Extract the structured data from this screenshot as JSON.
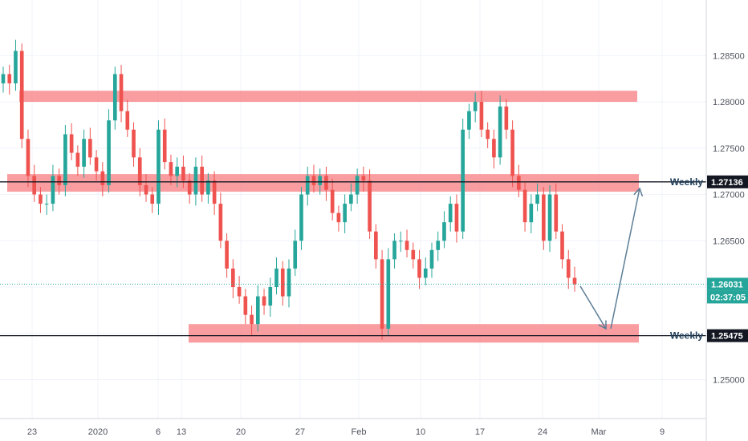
{
  "chart_data": {
    "type": "candlestick",
    "x_ticks": [
      "23",
      "2020",
      "6",
      "13",
      "20",
      "27",
      "Feb",
      "10",
      "17",
      "24",
      "Mar",
      "9"
    ],
    "y_ticks": [
      "1.28500",
      "1.28000",
      "1.27500",
      "1.27000",
      "1.26500",
      "1.26000",
      "1.25500",
      "1.25000"
    ],
    "y_range": [
      1.2458,
      1.291
    ],
    "price_levels": [
      {
        "label": "Weekly",
        "price": "1.27136",
        "value": 1.27136
      },
      {
        "label": "Weekly",
        "price": "1.25475",
        "value": 1.25475
      }
    ],
    "last_price": {
      "price": "1.26031",
      "value": 1.26031,
      "countdown": "02:37:05"
    },
    "zones": [
      {
        "from": 1.28,
        "to": 1.2812
      },
      {
        "from": 1.2703,
        "to": 1.2722
      },
      {
        "from": 1.254,
        "to": 1.256
      }
    ],
    "projection": [
      {
        "date": "Feb 27",
        "value": 1.2601
      },
      {
        "date": "Mar 3",
        "value": 1.2555
      },
      {
        "date": "Mar 5",
        "value": 1.271
      }
    ],
    "candles_close": [
      1.283,
      1.282,
      1.2855,
      1.276,
      1.272,
      1.27,
      1.269,
      1.269,
      1.272,
      1.271,
      1.2765,
      1.2745,
      1.273,
      1.276,
      1.274,
      1.2725,
      1.271,
      1.278,
      1.283,
      1.279,
      1.277,
      1.274,
      1.271,
      1.27,
      1.269,
      1.277,
      1.2735,
      1.272,
      1.273,
      1.2715,
      1.27,
      1.273,
      1.27,
      1.2715,
      1.269,
      1.265,
      1.262,
      1.26,
      1.259,
      1.257,
      1.256,
      1.259,
      1.258,
      1.26,
      1.262,
      1.259,
      1.262,
      1.265,
      1.27,
      1.272,
      1.271,
      1.272,
      1.2705,
      1.268,
      1.267,
      1.269,
      1.27,
      1.272,
      1.2715,
      1.266,
      1.263,
      1.2555,
      1.263,
      1.265,
      1.265,
      1.264,
      1.263,
      1.261,
      1.262,
      1.264,
      1.265,
      1.267,
      1.269,
      1.266,
      1.277,
      1.279,
      1.28,
      1.277,
      1.276,
      1.274,
      1.2795,
      1.277,
      1.272,
      1.2705,
      1.267,
      1.269,
      1.27,
      1.265,
      1.27,
      1.266,
      1.263,
      1.261,
      1.2603
    ]
  },
  "header_style": {
    "up_color": "#26a69a",
    "down_color": "#ef5350",
    "zone_color": "#f77c80",
    "projection_color": "#5d7e96",
    "last_price_color": "#26a69a"
  }
}
